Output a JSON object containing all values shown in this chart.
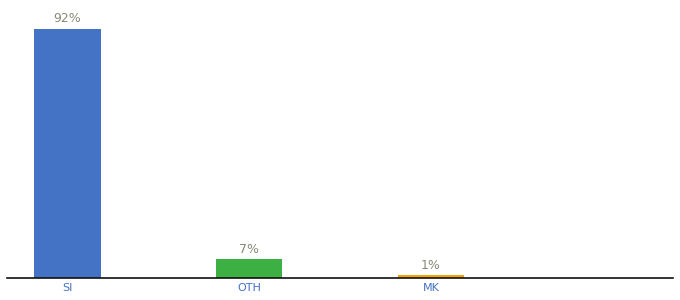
{
  "categories": [
    "SI",
    "OTH",
    "MK"
  ],
  "values": [
    92,
    7,
    1
  ],
  "bar_colors": [
    "#4472c4",
    "#3cb043",
    "#f0a500"
  ],
  "labels": [
    "92%",
    "7%",
    "1%"
  ],
  "ylim": [
    0,
    100
  ],
  "background_color": "#ffffff",
  "label_fontsize": 9,
  "tick_fontsize": 8,
  "label_color": "#888877",
  "tick_color": "#4472c4",
  "bar_width": 0.55,
  "x_positions": [
    0.5,
    2.0,
    3.5
  ],
  "xlim": [
    0,
    5.5
  ]
}
